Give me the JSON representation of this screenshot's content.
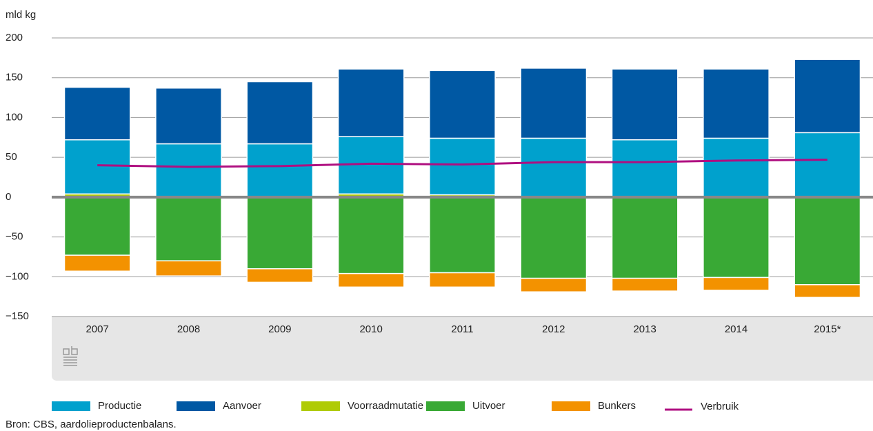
{
  "chart_data": {
    "type": "bar",
    "stacked": true,
    "y_label": "mld kg",
    "source": "Bron: CBS, aardolieproductenbalans.",
    "categories": [
      "2007",
      "2008",
      "2009",
      "2010",
      "2011",
      "2012",
      "2013",
      "2014",
      "2015*"
    ],
    "series": [
      {
        "name": "Productie",
        "color": "#00a1cd",
        "values": [
          68,
          67,
          67,
          72,
          71,
          74,
          72,
          74,
          81
        ]
      },
      {
        "name": "Aanvoer",
        "color": "#0058a3",
        "values": [
          66,
          70,
          78,
          85,
          85,
          88,
          89,
          87,
          92
        ]
      },
      {
        "name": "Voorraadmutatie",
        "color": "#afcb05",
        "values": [
          4,
          0,
          0,
          4,
          3,
          0,
          0,
          0,
          0
        ]
      },
      {
        "name": "Uitvoer",
        "color": "#39a935",
        "values": [
          -73,
          -80,
          -90,
          -96,
          -95,
          -102,
          -102,
          -101,
          -110
        ]
      },
      {
        "name": "Bunkers",
        "color": "#f39200",
        "values": [
          -20,
          -19,
          -17,
          -17,
          -18,
          -17,
          -16,
          -16,
          -16
        ]
      },
      {
        "name": "Verbruik",
        "color": "#af0e80",
        "type": "line",
        "values": [
          40,
          38,
          39,
          42,
          41,
          44,
          44,
          46,
          47
        ]
      }
    ],
    "ylim": [
      -150,
      200
    ],
    "yticks": [
      {
        "value": -150,
        "label": "−150"
      },
      {
        "value": -100,
        "label": "−100"
      },
      {
        "value": -50,
        "label": "−50"
      },
      0,
      50,
      100,
      150,
      200
    ],
    "grid": true
  }
}
